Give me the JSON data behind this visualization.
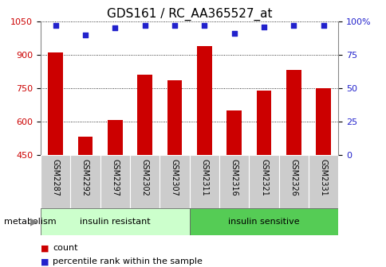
{
  "title": "GDS161 / RC_AA365527_at",
  "categories": [
    "GSM2287",
    "GSM2292",
    "GSM2297",
    "GSM2302",
    "GSM2307",
    "GSM2311",
    "GSM2316",
    "GSM2321",
    "GSM2326",
    "GSM2331"
  ],
  "counts": [
    910,
    530,
    605,
    810,
    785,
    940,
    650,
    740,
    830,
    750
  ],
  "percentile_ranks": [
    97,
    90,
    95,
    97,
    97,
    97,
    91,
    96,
    97,
    97
  ],
  "ylim_left": [
    450,
    1050
  ],
  "ylim_right": [
    0,
    100
  ],
  "yticks_left": [
    450,
    600,
    750,
    900,
    1050
  ],
  "yticks_right": [
    0,
    25,
    50,
    75,
    100
  ],
  "bar_color": "#cc0000",
  "dot_color": "#2222cc",
  "group1_label": "insulin resistant",
  "group2_label": "insulin sensitive",
  "group1_indices": [
    0,
    1,
    2,
    3,
    4
  ],
  "group2_indices": [
    5,
    6,
    7,
    8,
    9
  ],
  "group1_bg": "#ccffcc",
  "group2_bg": "#55cc55",
  "tick_bg": "#cccccc",
  "metabolism_label": "metabolism",
  "legend_count_label": "count",
  "legend_pct_label": "percentile rank within the sample",
  "title_fontsize": 11,
  "tick_fontsize": 8,
  "label_fontsize": 8
}
